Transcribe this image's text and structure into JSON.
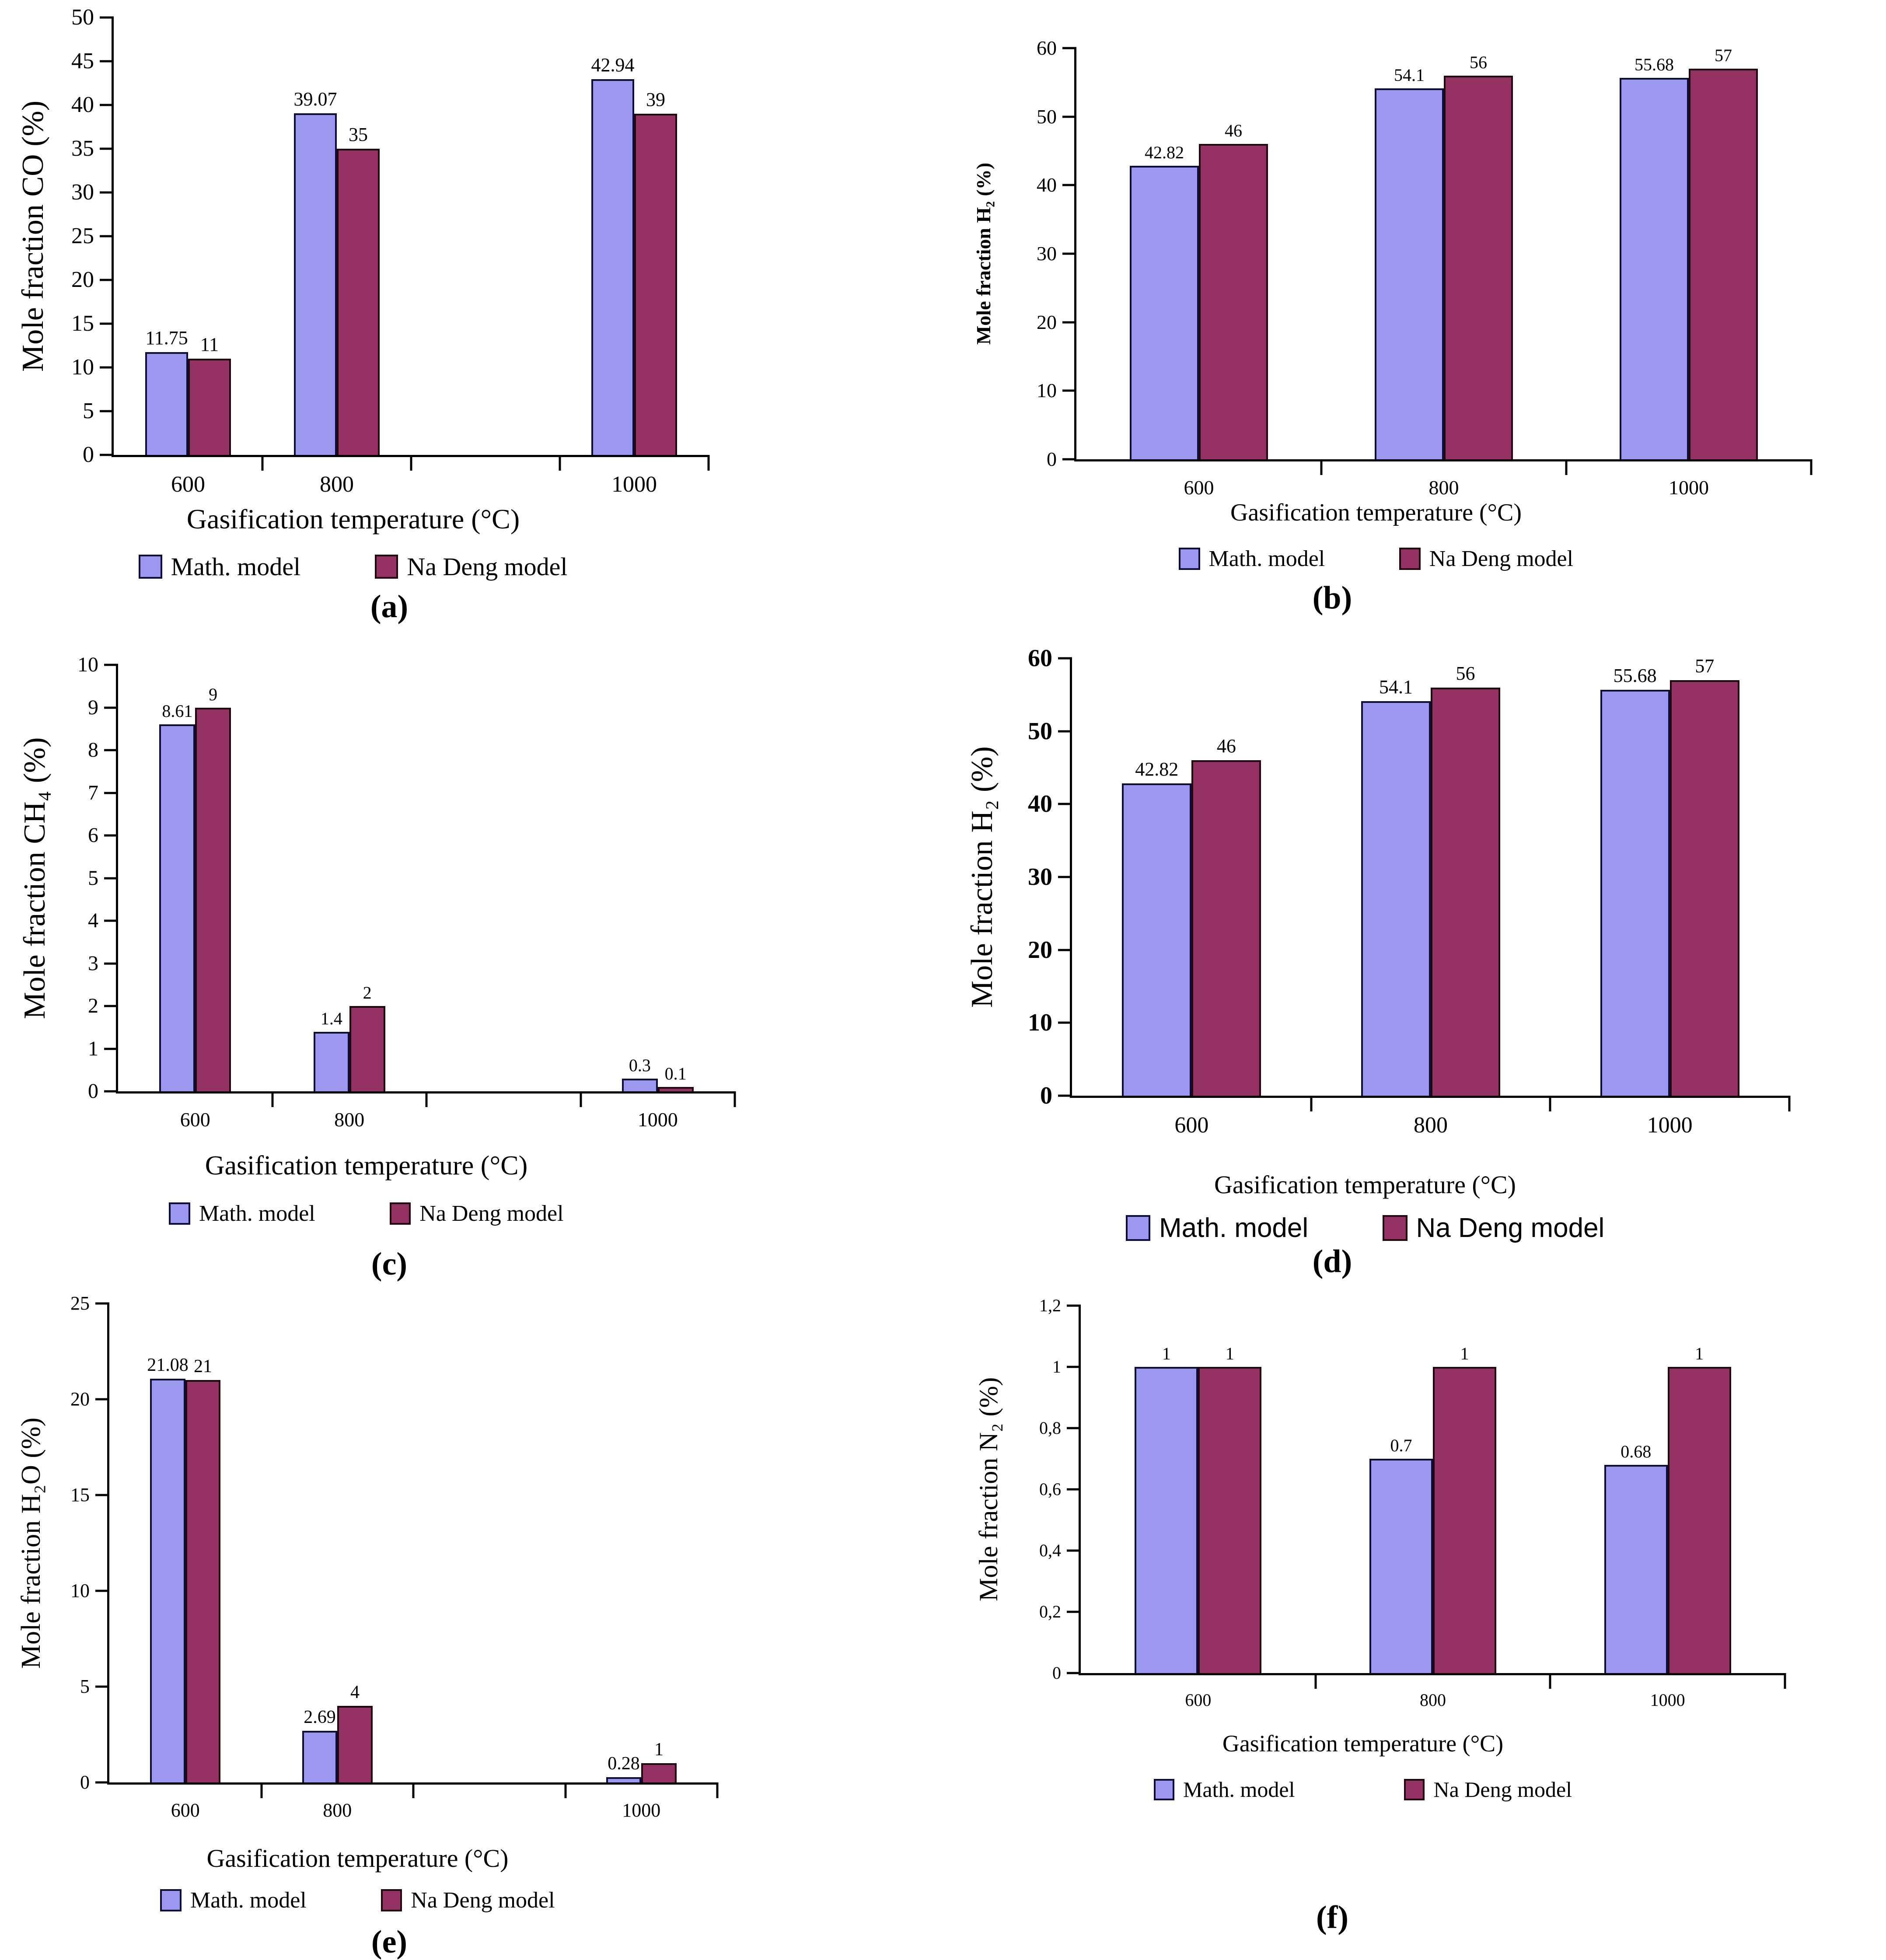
{
  "colors": {
    "math_model_fill": "#9B98F0",
    "math_model_border": "#0D0D38",
    "na_deng_model_fill": "#943363",
    "na_deng_model_border": "#22060F",
    "axis_line": "#000000",
    "text": "#000000"
  },
  "chart_data": [
    {
      "id": "a",
      "type": "bar",
      "caption": "(a)",
      "title": "",
      "xlabel": "Gasification temperature (°C)",
      "ylabel": "Mole fraction CO (%)",
      "categories": [
        "600",
        "800",
        "1000"
      ],
      "series": [
        {
          "name": "Math. model",
          "values": [
            11.75,
            39.07,
            42.94
          ],
          "labels": [
            "11.75",
            "39.07",
            "42.94"
          ]
        },
        {
          "name": "Na Deng model",
          "values": [
            11,
            35,
            39
          ],
          "labels": [
            "11",
            "35",
            "39"
          ]
        }
      ],
      "ylim": [
        0,
        50
      ],
      "ytick_values": [
        0,
        5,
        10,
        15,
        20,
        25,
        30,
        35,
        40,
        45,
        50
      ],
      "ytick_labels": [
        "0",
        "5",
        "10",
        "15",
        "20",
        "25",
        "30",
        "35",
        "40",
        "45",
        "50"
      ],
      "layout": {
        "num_slots": 4,
        "category_slots": [
          0,
          1,
          3
        ],
        "bar_width_frac": 0.072,
        "grid": false,
        "legend_position": "bottom"
      }
    },
    {
      "id": "b",
      "type": "bar",
      "caption": "(b)",
      "title": "",
      "xlabel": "Gasification temperature (°C)",
      "ylabel": "Mole fraction H₂ (%)",
      "categories": [
        "600",
        "800",
        "1000"
      ],
      "series": [
        {
          "name": "Math. model",
          "values": [
            42.82,
            54.1,
            55.68
          ],
          "labels": [
            "42.82",
            "54.1",
            "55.68"
          ]
        },
        {
          "name": "Na Deng model",
          "values": [
            46,
            56,
            57
          ],
          "labels": [
            "46",
            "56",
            "57"
          ]
        }
      ],
      "ylim": [
        0,
        60
      ],
      "ytick_values": [
        0,
        10,
        20,
        30,
        40,
        50,
        60
      ],
      "ytick_labels": [
        "0",
        "10",
        "20",
        "30",
        "40",
        "50",
        "60"
      ],
      "layout": {
        "num_slots": 3,
        "category_slots": [
          0,
          1,
          2
        ],
        "bar_width_frac": 0.094,
        "grid": false,
        "legend_position": "bottom"
      }
    },
    {
      "id": "c",
      "type": "bar",
      "caption": "(c)",
      "title": "",
      "xlabel": "Gasification temperature (°C)",
      "ylabel": "Mole fraction CH₄ (%)",
      "categories": [
        "600",
        "800",
        "1000"
      ],
      "series": [
        {
          "name": "Math. model",
          "values": [
            8.61,
            1.4,
            0.3
          ],
          "labels": [
            "8.61",
            "1.4",
            "0.3"
          ]
        },
        {
          "name": "Na Deng model",
          "values": [
            9,
            2,
            0.1
          ],
          "labels": [
            "9",
            "2",
            "0.1"
          ]
        }
      ],
      "ylim": [
        0,
        10
      ],
      "ytick_values": [
        0,
        1,
        2,
        3,
        4,
        5,
        6,
        7,
        8,
        9,
        10
      ],
      "ytick_labels": [
        "0",
        "1",
        "2",
        "3",
        "4",
        "5",
        "6",
        "7",
        "8",
        "9",
        "10"
      ],
      "layout": {
        "num_slots": 4,
        "category_slots": [
          0,
          1,
          3
        ],
        "bar_width_frac": 0.058,
        "grid": false,
        "legend_position": "bottom"
      }
    },
    {
      "id": "d",
      "type": "bar",
      "caption": "(d)",
      "title": "",
      "xlabel": "Gasification temperature (°C)",
      "ylabel": "Mole fraction H₂ (%)",
      "categories": [
        "600",
        "800",
        "1000"
      ],
      "series": [
        {
          "name": "Math. model",
          "values": [
            42.82,
            54.1,
            55.68
          ],
          "labels": [
            "42.82",
            "54.1",
            "55.68"
          ]
        },
        {
          "name": "Na Deng model",
          "values": [
            46,
            56,
            57
          ],
          "labels": [
            "46",
            "56",
            "57"
          ]
        }
      ],
      "ylim": [
        0,
        60
      ],
      "ytick_values": [
        0,
        10,
        20,
        30,
        40,
        50,
        60
      ],
      "ytick_labels": [
        "0",
        "10",
        "20",
        "30",
        "40",
        "50",
        "60"
      ],
      "layout": {
        "num_slots": 3,
        "category_slots": [
          0,
          1,
          2
        ],
        "bar_width_frac": 0.097,
        "grid": false,
        "legend_position": "bottom"
      }
    },
    {
      "id": "e",
      "type": "bar",
      "caption": "(e)",
      "title": "",
      "xlabel": "Gasification temperature (°C)",
      "ylabel": "Mole fraction H₂O (%)",
      "categories": [
        "600",
        "800",
        "1000"
      ],
      "series": [
        {
          "name": "Math. model",
          "values": [
            21.08,
            2.69,
            0.28
          ],
          "labels": [
            "21.08",
            "2.69",
            "0.28"
          ]
        },
        {
          "name": "Na Deng model",
          "values": [
            21,
            4,
            1
          ],
          "labels": [
            "21",
            "4",
            "1"
          ]
        }
      ],
      "ylim": [
        0,
        25
      ],
      "ytick_values": [
        0,
        5,
        10,
        15,
        20,
        25
      ],
      "ytick_labels": [
        "0",
        "5",
        "10",
        "15",
        "20",
        "25"
      ],
      "layout": {
        "num_slots": 4,
        "category_slots": [
          0,
          1,
          3
        ],
        "bar_width_frac": 0.058,
        "grid": false,
        "legend_position": "bottom"
      }
    },
    {
      "id": "f",
      "type": "bar",
      "caption": "(f)",
      "title": "",
      "xlabel": "Gasification temperature (°C)",
      "ylabel": "Mole fraction N₂ (%)",
      "categories": [
        "600",
        "800",
        "1000"
      ],
      "series": [
        {
          "name": "Math. model",
          "values": [
            1,
            0.7,
            0.68
          ],
          "labels": [
            "1",
            "0.7",
            "0.68"
          ]
        },
        {
          "name": "Na Deng model",
          "values": [
            1,
            1,
            1
          ],
          "labels": [
            "1",
            "1",
            "1"
          ]
        }
      ],
      "ylim": [
        0,
        1.2
      ],
      "ytick_values": [
        0,
        0.2,
        0.4,
        0.6,
        0.8,
        1,
        1.2
      ],
      "ytick_labels": [
        "0",
        "0,2",
        "0,4",
        "0,6",
        "0,8",
        "1",
        "1,2"
      ],
      "layout": {
        "num_slots": 3,
        "category_slots": [
          0,
          1,
          2
        ],
        "bar_width_frac": 0.09,
        "grid": false,
        "legend_position": "bottom"
      }
    }
  ]
}
